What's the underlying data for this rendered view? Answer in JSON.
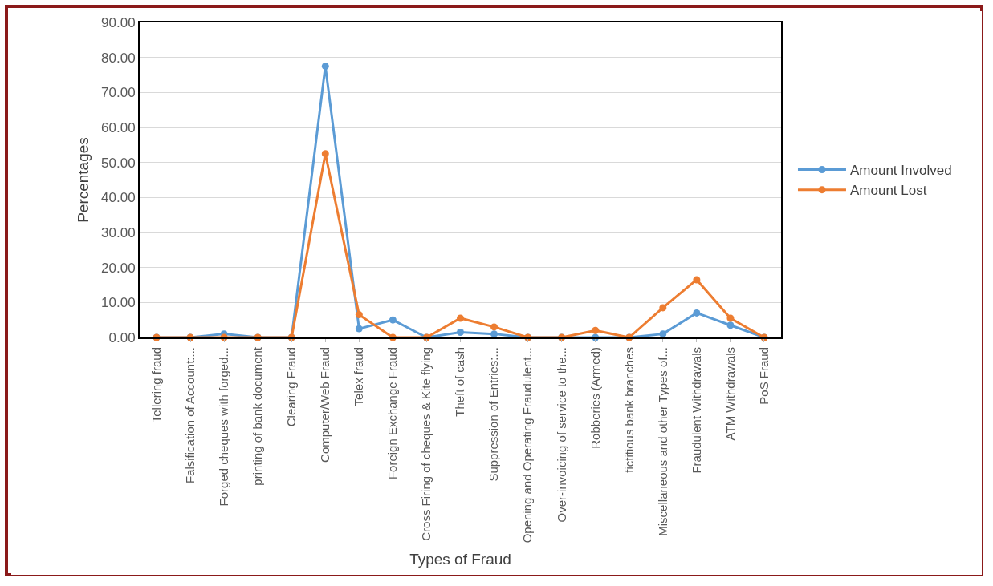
{
  "chart_data": {
    "type": "line",
    "xlabel": "Types of Fraud",
    "ylabel": "Percentages",
    "categories": [
      "Tellering fraud",
      "Falsification of Account:...",
      "Forged cheques with forged...",
      "printing of bank document",
      "Clearing Fraud",
      "Computer/Web Fraud",
      "Telex fraud",
      "Foreign Exchange Fraud",
      "Cross Firing of cheques & Kite flying",
      "Theft of cash",
      "Suppression of Entries:...",
      "Opening and Operating Fraudulent...",
      "Over-invoicing of service to the...",
      "Robberies (Armed)",
      "fictitious bank branches",
      "Miscellaneous and other Types of...",
      "Fraudulent Withdrawals",
      "ATM Withdrawals",
      "PoS Fraud"
    ],
    "series": [
      {
        "name": "Amount Involved",
        "color": "#5b9bd5",
        "values": [
          0,
          0,
          1,
          0,
          0,
          77.5,
          2.5,
          5,
          0,
          1.5,
          1,
          0,
          0,
          0,
          0,
          1,
          7,
          3.5,
          0
        ]
      },
      {
        "name": "Amount Lost",
        "color": "#ed7d31",
        "values": [
          0,
          0,
          0,
          0,
          0,
          52.5,
          6.5,
          0,
          0,
          5.5,
          3,
          0,
          0,
          2,
          0,
          8.5,
          16.5,
          5.5,
          0
        ]
      }
    ],
    "ylim": [
      0,
      90
    ],
    "yticks": [
      {
        "value": 0,
        "label": "0.00"
      },
      {
        "value": 10,
        "label": "10.00"
      },
      {
        "value": 20,
        "label": "20.00"
      },
      {
        "value": 30,
        "label": "30.00"
      },
      {
        "value": 40,
        "label": "40.00"
      },
      {
        "value": 50,
        "label": "50.00"
      },
      {
        "value": 60,
        "label": "60.00"
      },
      {
        "value": 70,
        "label": "70.00"
      },
      {
        "value": 80,
        "label": "80.00"
      },
      {
        "value": 90,
        "label": "90.00"
      }
    ],
    "grid": "y",
    "legend": "right",
    "marker": "circle",
    "line_style": "solid"
  }
}
